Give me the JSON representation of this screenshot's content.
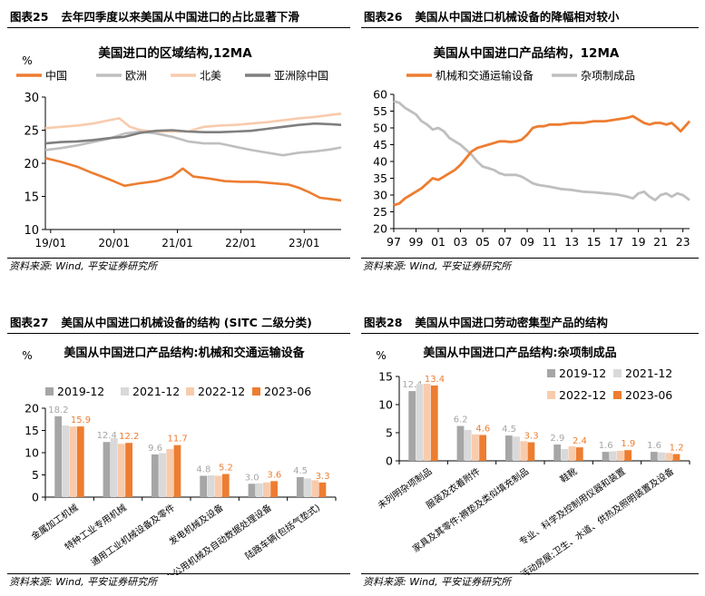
{
  "panels": [
    {
      "fig_no": "图表25",
      "title": "去年四季度以来美国从中国进口的占比显著下滑",
      "source": "资料来源: Wind, 平安证券研究所"
    },
    {
      "fig_no": "图表26",
      "title": "美国从中国进口机械设备的降幅相对较小",
      "source": "资料来源: Wind, 平安证券研究所"
    },
    {
      "fig_no": "图表27",
      "title": "美国从中国进口机械设备的结构 (SITC 二级分类)",
      "source": "资料来源: Wind, 平安证券研究所"
    },
    {
      "fig_no": "图表28",
      "title": "美国从中国进口劳动密集型产品的结构",
      "source": "资料来源: Wind, 平安证券研究所"
    }
  ],
  "chart_data": [
    {
      "type": "line",
      "title": "美国进口的区域结构,12MA",
      "unit": "%",
      "ylim": [
        10,
        30
      ],
      "yticks": [
        10,
        15,
        20,
        25,
        30
      ],
      "x_start": "2018-12",
      "x_end": "2023-08",
      "xticks": [
        {
          "date": "2019-01",
          "label": "19/01"
        },
        {
          "date": "2020-01",
          "label": "20/01"
        },
        {
          "date": "2021-01",
          "label": "21/01"
        },
        {
          "date": "2022-01",
          "label": "22/01"
        },
        {
          "date": "2023-01",
          "label": "23/01"
        }
      ],
      "legend_position": "top",
      "series": [
        {
          "name": "中国",
          "color": "#ED7D31",
          "points": [
            [
              "2018-12",
              20.8
            ],
            [
              "2019-03",
              20.2
            ],
            [
              "2019-06",
              19.5
            ],
            [
              "2019-09",
              18.5
            ],
            [
              "2019-12",
              17.6
            ],
            [
              "2020-03",
              16.6
            ],
            [
              "2020-06",
              17.0
            ],
            [
              "2020-09",
              17.3
            ],
            [
              "2020-12",
              18.0
            ],
            [
              "2021-02",
              19.2
            ],
            [
              "2021-04",
              18.0
            ],
            [
              "2021-07",
              17.7
            ],
            [
              "2021-10",
              17.3
            ],
            [
              "2022-01",
              17.2
            ],
            [
              "2022-04",
              17.2
            ],
            [
              "2022-07",
              17.0
            ],
            [
              "2022-10",
              16.8
            ],
            [
              "2022-12",
              16.3
            ],
            [
              "2023-02",
              15.6
            ],
            [
              "2023-04",
              14.8
            ],
            [
              "2023-06",
              14.6
            ],
            [
              "2023-08",
              14.4
            ]
          ]
        },
        {
          "name": "欧洲",
          "color": "#BFBFBF",
          "points": [
            [
              "2018-12",
              22.0
            ],
            [
              "2019-03",
              22.3
            ],
            [
              "2019-06",
              22.7
            ],
            [
              "2019-09",
              23.2
            ],
            [
              "2019-12",
              23.7
            ],
            [
              "2020-03",
              24.5
            ],
            [
              "2020-06",
              24.8
            ],
            [
              "2020-09",
              24.5
            ],
            [
              "2020-12",
              24.0
            ],
            [
              "2021-03",
              23.3
            ],
            [
              "2021-06",
              23.0
            ],
            [
              "2021-09",
              23.0
            ],
            [
              "2021-12",
              22.5
            ],
            [
              "2022-03",
              22.0
            ],
            [
              "2022-06",
              21.6
            ],
            [
              "2022-09",
              21.2
            ],
            [
              "2022-12",
              21.6
            ],
            [
              "2023-03",
              21.8
            ],
            [
              "2023-06",
              22.1
            ],
            [
              "2023-08",
              22.4
            ]
          ]
        },
        {
          "name": "北美",
          "color": "#F8CBAD",
          "points": [
            [
              "2018-12",
              25.3
            ],
            [
              "2019-03",
              25.5
            ],
            [
              "2019-06",
              25.7
            ],
            [
              "2019-09",
              26.0
            ],
            [
              "2019-12",
              26.5
            ],
            [
              "2020-02",
              26.8
            ],
            [
              "2020-04",
              25.5
            ],
            [
              "2020-06",
              25.0
            ],
            [
              "2020-09",
              24.8
            ],
            [
              "2020-12",
              24.8
            ],
            [
              "2021-03",
              24.8
            ],
            [
              "2021-06",
              25.5
            ],
            [
              "2021-09",
              25.7
            ],
            [
              "2021-12",
              25.8
            ],
            [
              "2022-03",
              26.0
            ],
            [
              "2022-06",
              26.2
            ],
            [
              "2022-09",
              26.5
            ],
            [
              "2022-12",
              26.8
            ],
            [
              "2023-03",
              27.0
            ],
            [
              "2023-06",
              27.3
            ],
            [
              "2023-08",
              27.5
            ]
          ]
        },
        {
          "name": "亚洲除中国",
          "color": "#7F7F7F",
          "points": [
            [
              "2018-12",
              23.0
            ],
            [
              "2019-03",
              23.2
            ],
            [
              "2019-06",
              23.3
            ],
            [
              "2019-09",
              23.5
            ],
            [
              "2019-12",
              23.8
            ],
            [
              "2020-03",
              24.0
            ],
            [
              "2020-06",
              24.6
            ],
            [
              "2020-09",
              24.9
            ],
            [
              "2020-12",
              25.0
            ],
            [
              "2021-03",
              24.8
            ],
            [
              "2021-06",
              24.7
            ],
            [
              "2021-09",
              24.7
            ],
            [
              "2021-12",
              24.8
            ],
            [
              "2022-03",
              24.9
            ],
            [
              "2022-06",
              25.2
            ],
            [
              "2022-09",
              25.5
            ],
            [
              "2022-12",
              25.8
            ],
            [
              "2023-03",
              26.0
            ],
            [
              "2023-06",
              25.9
            ],
            [
              "2023-08",
              25.8
            ]
          ]
        }
      ]
    },
    {
      "type": "line",
      "title": "美国从中国进口产品结构，12MA",
      "unit": "",
      "ylim": [
        20,
        60
      ],
      "yticks": [
        20,
        25,
        30,
        35,
        40,
        45,
        50,
        55,
        60
      ],
      "x_start": 1997,
      "x_end": 2023.6,
      "xticks": [
        {
          "year": 1997,
          "label": "97"
        },
        {
          "year": 1999,
          "label": "99"
        },
        {
          "year": 2001,
          "label": "01"
        },
        {
          "year": 2003,
          "label": "03"
        },
        {
          "year": 2005,
          "label": "05"
        },
        {
          "year": 2007,
          "label": "07"
        },
        {
          "year": 2009,
          "label": "09"
        },
        {
          "year": 2011,
          "label": "11"
        },
        {
          "year": 2013,
          "label": "13"
        },
        {
          "year": 2015,
          "label": "15"
        },
        {
          "year": 2017,
          "label": "17"
        },
        {
          "year": 2019,
          "label": "19"
        },
        {
          "year": 2021,
          "label": "21"
        },
        {
          "year": 2023,
          "label": "23"
        }
      ],
      "legend_position": "top",
      "series": [
        {
          "name": "机械和交通运输设备",
          "color": "#ED7D31",
          "points": [
            [
              1997.0,
              27.0
            ],
            [
              1997.5,
              27.5
            ],
            [
              1998.0,
              29.0
            ],
            [
              1998.5,
              30.0
            ],
            [
              1999.0,
              31.0
            ],
            [
              1999.5,
              32.0
            ],
            [
              2000.0,
              33.5
            ],
            [
              2000.5,
              35.0
            ],
            [
              2001.0,
              34.5
            ],
            [
              2001.5,
              35.5
            ],
            [
              2002.0,
              36.5
            ],
            [
              2002.5,
              37.5
            ],
            [
              2003.0,
              39.0
            ],
            [
              2003.5,
              41.0
            ],
            [
              2004.0,
              43.0
            ],
            [
              2004.5,
              44.0
            ],
            [
              2005.0,
              44.5
            ],
            [
              2005.5,
              45.0
            ],
            [
              2006.0,
              45.5
            ],
            [
              2006.5,
              46.0
            ],
            [
              2007.0,
              46.0
            ],
            [
              2007.5,
              45.8
            ],
            [
              2008.0,
              46.0
            ],
            [
              2008.5,
              46.5
            ],
            [
              2009.0,
              48.0
            ],
            [
              2009.5,
              50.0
            ],
            [
              2010.0,
              50.5
            ],
            [
              2010.5,
              50.5
            ],
            [
              2011.0,
              51.0
            ],
            [
              2012.0,
              51.0
            ],
            [
              2013.0,
              51.5
            ],
            [
              2014.0,
              51.5
            ],
            [
              2015.0,
              52.0
            ],
            [
              2016.0,
              52.0
            ],
            [
              2017.0,
              52.5
            ],
            [
              2018.0,
              53.0
            ],
            [
              2018.5,
              53.5
            ],
            [
              2019.0,
              52.5
            ],
            [
              2019.5,
              51.5
            ],
            [
              2020.0,
              51.0
            ],
            [
              2020.5,
              51.5
            ],
            [
              2021.0,
              51.5
            ],
            [
              2021.5,
              51.0
            ],
            [
              2022.0,
              51.5
            ],
            [
              2022.5,
              50.0
            ],
            [
              2022.8,
              49.0
            ],
            [
              2023.2,
              50.5
            ],
            [
              2023.6,
              52.0
            ]
          ]
        },
        {
          "name": "杂项制成品",
          "color": "#BFBFBF",
          "points": [
            [
              1997.0,
              58.0
            ],
            [
              1997.5,
              57.5
            ],
            [
              1998.0,
              56.0
            ],
            [
              1998.5,
              55.0
            ],
            [
              1999.0,
              54.0
            ],
            [
              1999.5,
              52.0
            ],
            [
              2000.0,
              51.0
            ],
            [
              2000.5,
              49.5
            ],
            [
              2001.0,
              50.0
            ],
            [
              2001.5,
              49.0
            ],
            [
              2002.0,
              47.0
            ],
            [
              2002.5,
              46.0
            ],
            [
              2003.0,
              45.0
            ],
            [
              2003.5,
              43.5
            ],
            [
              2004.0,
              42.0
            ],
            [
              2004.5,
              40.0
            ],
            [
              2005.0,
              38.5
            ],
            [
              2005.5,
              38.0
            ],
            [
              2006.0,
              37.5
            ],
            [
              2006.5,
              36.5
            ],
            [
              2007.0,
              36.0
            ],
            [
              2007.5,
              36.0
            ],
            [
              2008.0,
              36.0
            ],
            [
              2008.5,
              35.5
            ],
            [
              2009.0,
              34.5
            ],
            [
              2009.5,
              33.5
            ],
            [
              2010.0,
              33.0
            ],
            [
              2011.0,
              32.5
            ],
            [
              2012.0,
              31.8
            ],
            [
              2013.0,
              31.5
            ],
            [
              2014.0,
              31.0
            ],
            [
              2015.0,
              30.8
            ],
            [
              2016.0,
              30.5
            ],
            [
              2017.0,
              30.2
            ],
            [
              2018.0,
              29.5
            ],
            [
              2018.5,
              29.0
            ],
            [
              2019.0,
              30.5
            ],
            [
              2019.5,
              31.0
            ],
            [
              2020.0,
              29.5
            ],
            [
              2020.5,
              28.5
            ],
            [
              2021.0,
              30.0
            ],
            [
              2021.5,
              30.5
            ],
            [
              2022.0,
              29.5
            ],
            [
              2022.5,
              30.5
            ],
            [
              2023.0,
              30.0
            ],
            [
              2023.6,
              28.5
            ]
          ]
        }
      ]
    },
    {
      "type": "bar",
      "title": "美国从中国进口产品结构:机械和交通运输设备",
      "unit": "%",
      "ylim": [
        0,
        20
      ],
      "yticks": [
        0,
        5,
        10,
        15,
        20
      ],
      "legend_position": "top",
      "categories": [
        "金属加工机械",
        "特种工业专用机械",
        "通用工业机械设备及零件",
        "发电机械及设备",
        "办公用机械及自动数据处理设备",
        "陆路车辆(包括气垫式)"
      ],
      "series": [
        {
          "name": "2019-12",
          "color": "#A6A6A6",
          "values": [
            18.2,
            12.4,
            9.6,
            4.8,
            3.0,
            4.5
          ],
          "show_labels": true
        },
        {
          "name": "2021-12",
          "color": "#D9D9D9",
          "values": [
            16.1,
            13.3,
            9.9,
            4.9,
            3.1,
            4.2
          ],
          "show_labels": false
        },
        {
          "name": "2022-12",
          "color": "#F8CBAD",
          "values": [
            15.9,
            12.0,
            10.8,
            4.8,
            3.3,
            3.8
          ],
          "show_labels": false
        },
        {
          "name": "2023-06",
          "color": "#ED7D31",
          "values": [
            15.9,
            12.2,
            11.7,
            5.2,
            3.6,
            3.3
          ],
          "show_labels": true
        }
      ]
    },
    {
      "type": "bar",
      "title": "美国从中国进口产品结构:杂项制成品",
      "unit": "%",
      "ylim": [
        0,
        15
      ],
      "yticks": [
        0,
        5,
        10,
        15
      ],
      "legend_position": "top",
      "categories": [
        "未列明杂项制品",
        "服装及衣着附件",
        "家具及其零件;褥垫及类似填充制品",
        "鞋靴",
        "专业、科学及控制用仪器和装置",
        "活动房屋;卫生、水道、供热及照明装置及设备"
      ],
      "series": [
        {
          "name": "2019-12",
          "color": "#A6A6A6",
          "values": [
            12.4,
            6.2,
            4.5,
            2.9,
            1.6,
            1.6
          ],
          "show_labels": true
        },
        {
          "name": "2021-12",
          "color": "#D9D9D9",
          "values": [
            13.6,
            5.5,
            4.3,
            2.1,
            1.7,
            1.5
          ],
          "show_labels": false
        },
        {
          "name": "2022-12",
          "color": "#F8CBAD",
          "values": [
            13.7,
            4.7,
            3.5,
            2.6,
            1.8,
            1.4
          ],
          "show_labels": false
        },
        {
          "name": "2023-06",
          "color": "#ED7D31",
          "values": [
            13.4,
            4.6,
            3.3,
            2.4,
            1.9,
            1.2
          ],
          "show_labels": true
        }
      ]
    }
  ]
}
